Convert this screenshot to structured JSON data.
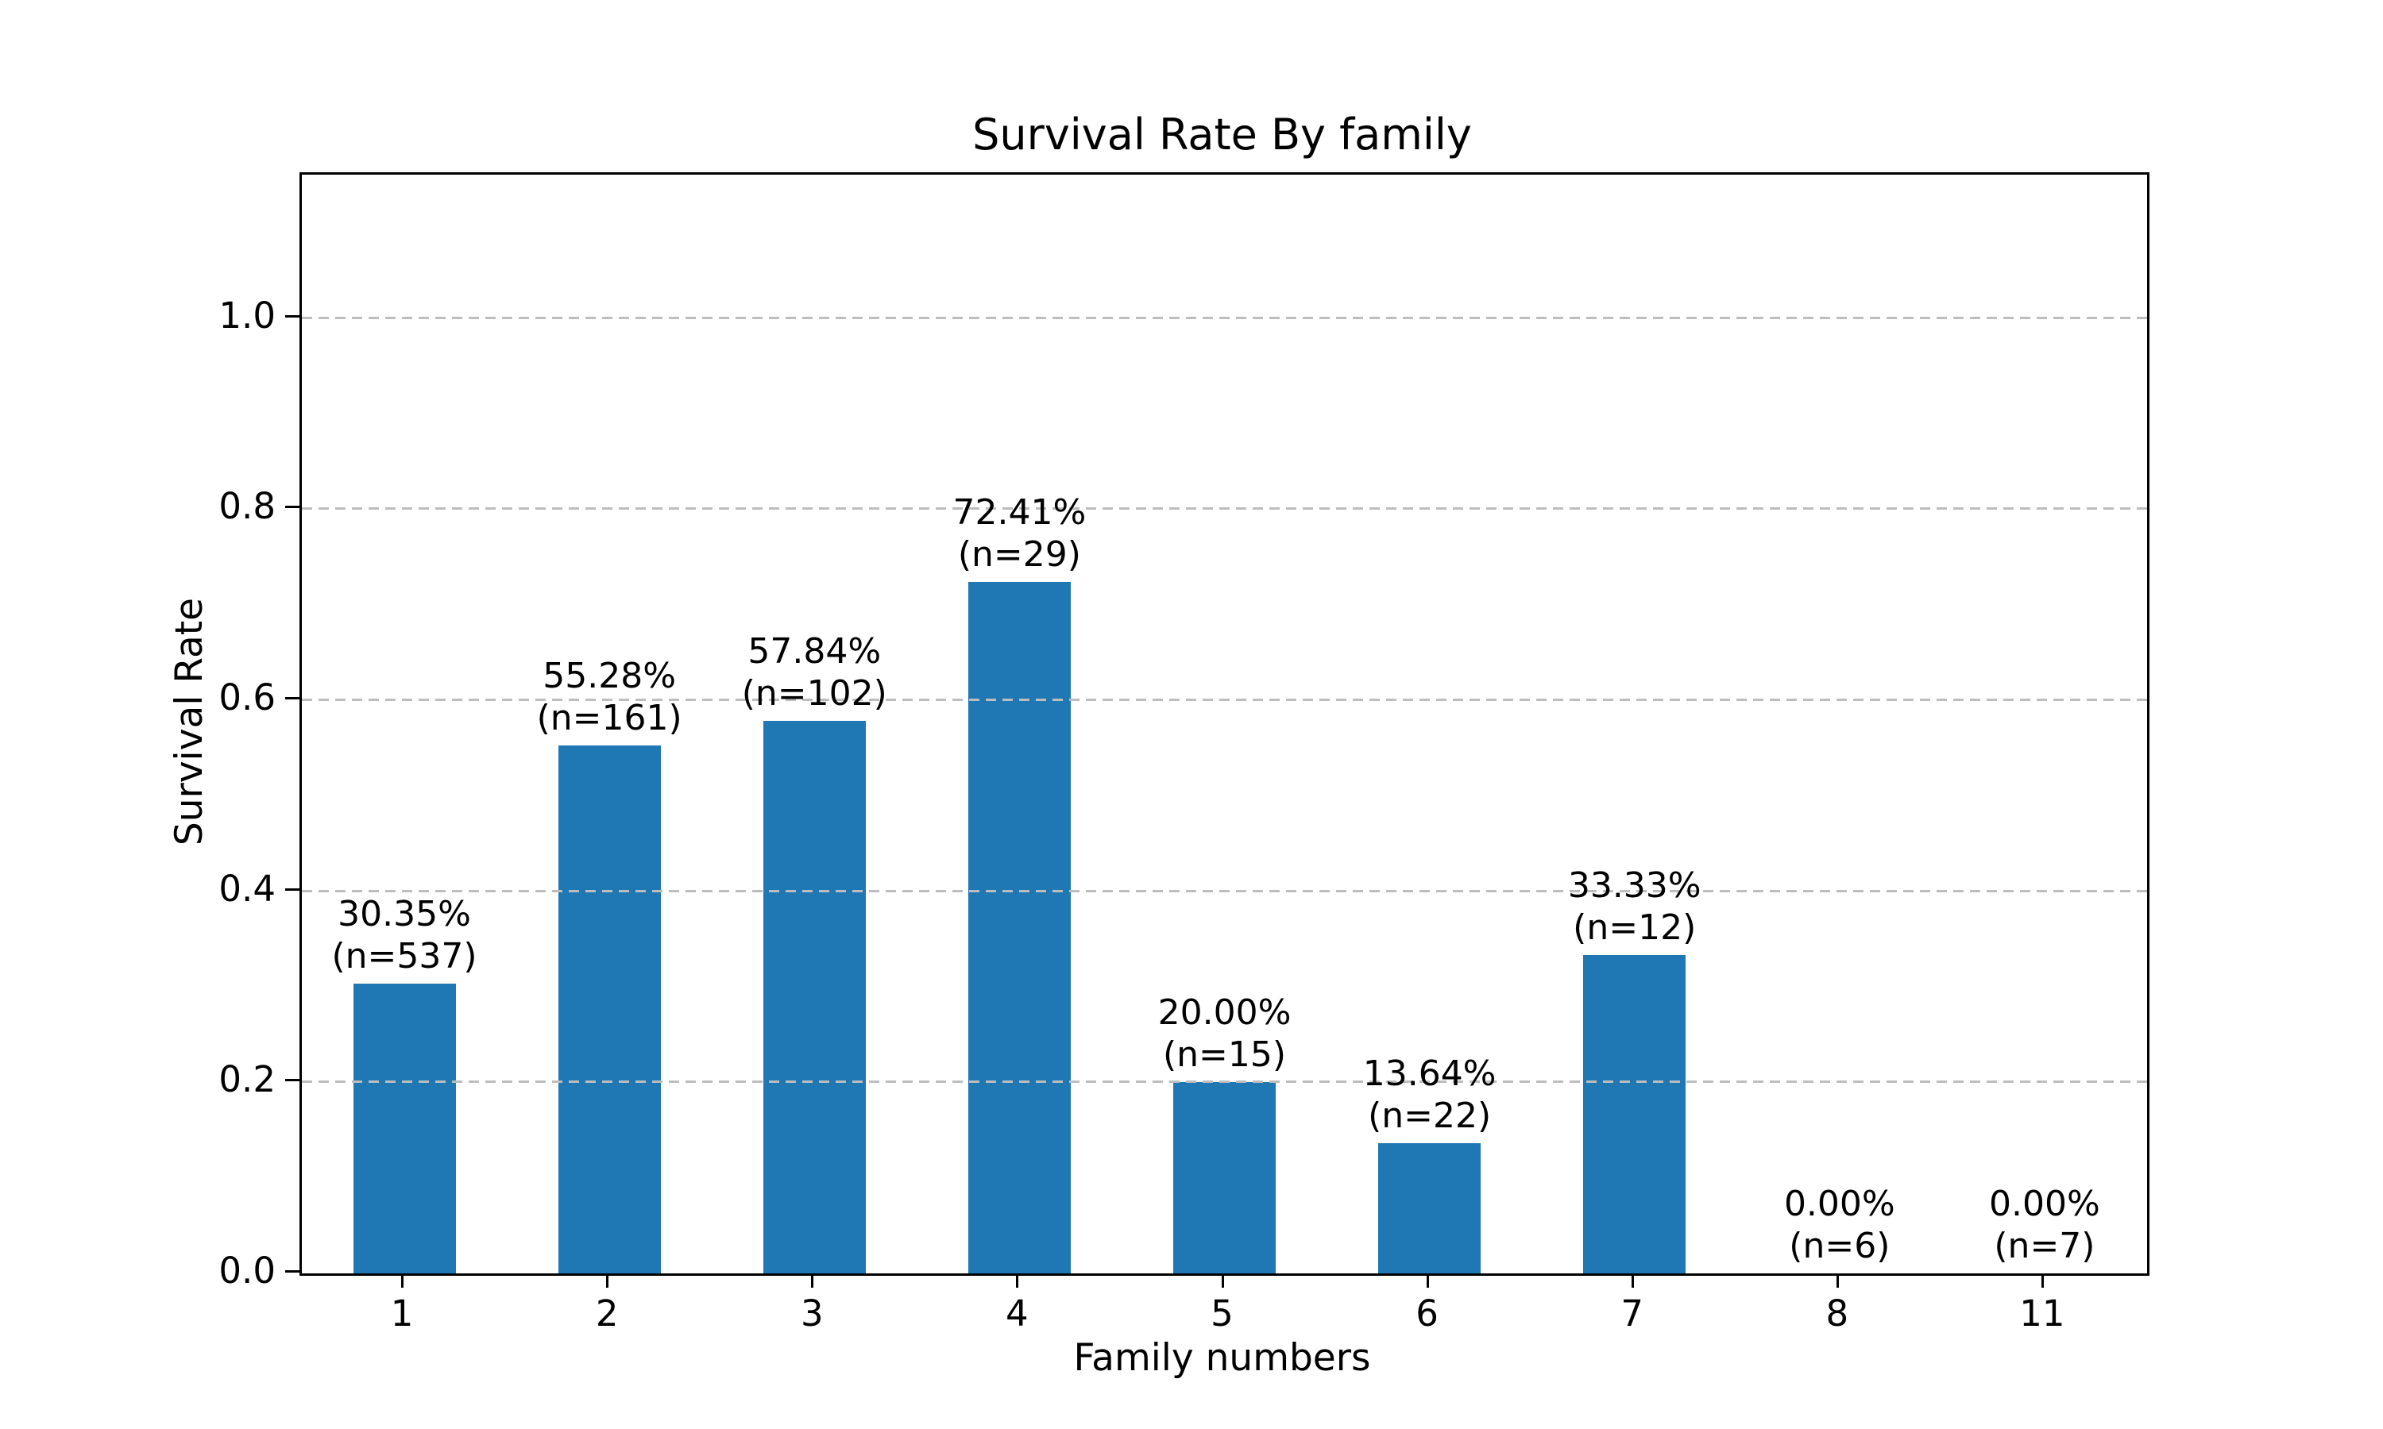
{
  "figure": {
    "background": "#ffffff"
  },
  "chart_data": {
    "type": "bar",
    "title": "Survival Rate By family",
    "xlabel": "Family numbers",
    "ylabel": "Survival Rate",
    "categories": [
      "1",
      "2",
      "3",
      "4",
      "5",
      "6",
      "7",
      "8",
      "11"
    ],
    "values": [
      0.3035,
      0.5528,
      0.5784,
      0.7241,
      0.2,
      0.1364,
      0.3333,
      0.0,
      0.0
    ],
    "counts": [
      537,
      161,
      102,
      29,
      15,
      22,
      12,
      6,
      7
    ],
    "percent_labels": [
      "30.35%",
      "55.28%",
      "57.84%",
      "72.41%",
      "20.00%",
      "13.64%",
      "33.33%",
      "0.00%",
      "0.00%"
    ],
    "n_labels": [
      "(n=537)",
      "(n=161)",
      "(n=102)",
      "(n=29)",
      "(n=15)",
      "(n=22)",
      "(n=12)",
      "(n=6)",
      "(n=7)"
    ],
    "yticks": [
      0.0,
      0.2,
      0.4,
      0.6,
      0.8,
      1.0
    ],
    "ytick_labels": [
      "0.0",
      "0.2",
      "0.4",
      "0.6",
      "0.8",
      "1.0"
    ],
    "ylim": [
      0,
      1.15
    ],
    "grid": "horizontal-dashed",
    "legend": "none",
    "bar_color": "#1f77b4",
    "bar_width_fraction": 0.5
  }
}
